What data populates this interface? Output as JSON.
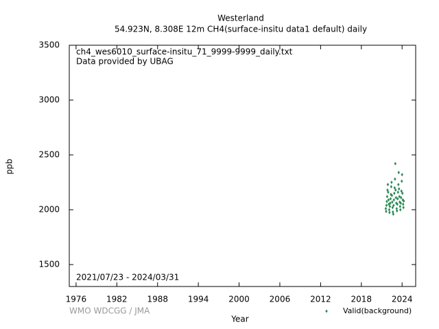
{
  "chart_data": {
    "type": "scatter",
    "title": "Westerland",
    "subtitle": "54.923N, 8.308E 12m    CH4(surface-insitu data1 default) daily",
    "annotations": [
      "ch4_wes6010_surface-insitu_71_9999-9999_daily.txt",
      "Data provided by UBAG",
      "2021/07/23 - 2024/03/31"
    ],
    "credit": "WMO WDCGG / JMA",
    "xlabel": "Year",
    "ylabel": "ppb",
    "xlim": [
      1975,
      2026
    ],
    "ylim": [
      1300,
      3500
    ],
    "xticks": [
      1976,
      1982,
      1988,
      1994,
      2000,
      2006,
      2012,
      2018,
      2024
    ],
    "yticks": [
      1500,
      2000,
      2500,
      3000,
      3500
    ],
    "legend": "bottom-right",
    "series": [
      {
        "name": "Valid(background)",
        "color": "#2e8b57",
        "x": [
          2021.6,
          2021.65,
          2021.7,
          2021.75,
          2021.8,
          2021.85,
          2021.9,
          2021.95,
          2022.0,
          2022.05,
          2022.1,
          2022.15,
          2022.2,
          2022.25,
          2022.3,
          2022.35,
          2022.4,
          2022.45,
          2022.5,
          2022.55,
          2022.6,
          2022.65,
          2022.7,
          2022.75,
          2022.8,
          2022.85,
          2022.9,
          2022.95,
          2023.0,
          2023.05,
          2023.1,
          2023.15,
          2023.2,
          2023.25,
          2023.3,
          2023.35,
          2023.4,
          2023.45,
          2023.5,
          2023.55,
          2023.6,
          2023.65,
          2023.7,
          2023.75,
          2023.8,
          2023.85,
          2023.9,
          2023.95,
          2024.0,
          2024.05,
          2024.1,
          2024.15,
          2024.2,
          2024.25
        ],
        "values": [
          2010,
          1985,
          2040,
          2075,
          2120,
          2180,
          2230,
          2160,
          2090,
          2050,
          2000,
          1975,
          2030,
          2060,
          2100,
          2140,
          2210,
          2250,
          2130,
          2070,
          2020,
          1980,
          1960,
          2040,
          2090,
          2150,
          2200,
          2280,
          2420,
          2180,
          2110,
          2060,
          2010,
          1990,
          2050,
          2100,
          2160,
          2230,
          2340,
          2190,
          2120,
          2070,
          2030,
          2000,
          2060,
          2110,
          2170,
          2260,
          2320,
          2150,
          2090,
          2050,
          2020,
          2080
        ]
      }
    ]
  }
}
